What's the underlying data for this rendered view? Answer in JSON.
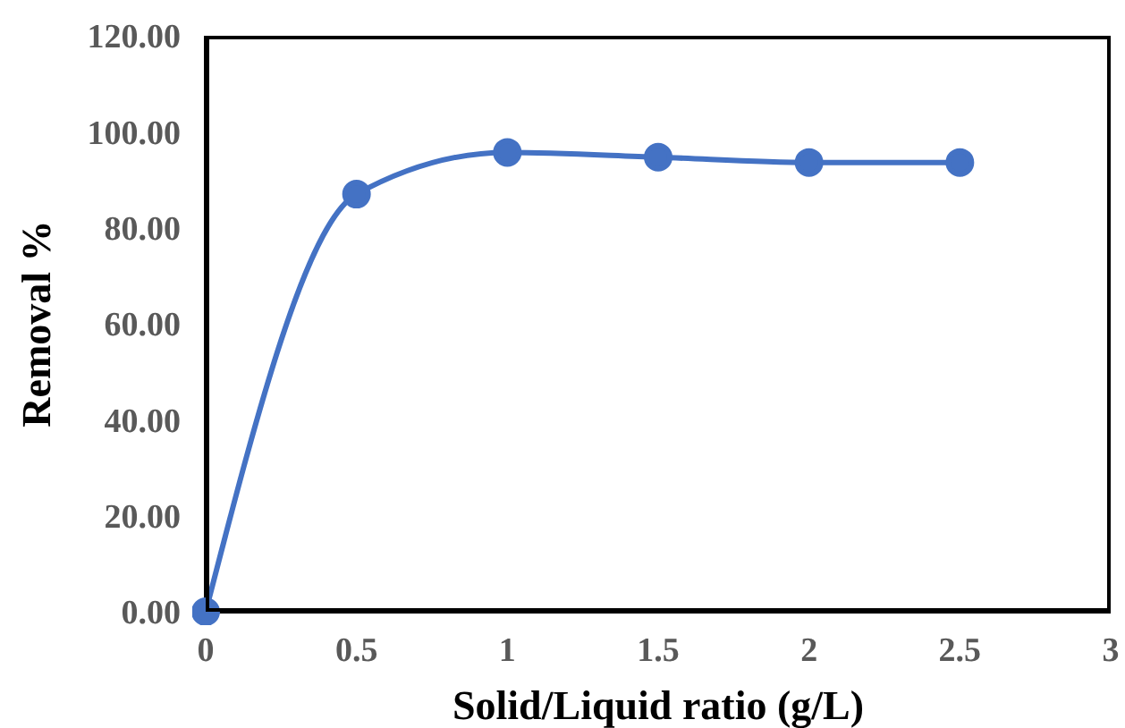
{
  "chart_data": {
    "type": "line",
    "xlabel": "Solid/Liquid ratio (g/L)",
    "ylabel": "Removal %",
    "x": [
      0,
      0.5,
      1,
      1.5,
      2,
      2.5
    ],
    "series": [
      {
        "color": "#4472c4",
        "values": [
          0,
          87.0,
          95.7,
          94.7,
          93.6,
          93.6
        ]
      }
    ],
    "xlim": [
      0,
      3
    ],
    "xticks": [
      0,
      0.5,
      1,
      1.5,
      2,
      2.5,
      3
    ],
    "ylim": [
      0,
      120
    ],
    "yticks": [
      {
        "value": 0,
        "label": "0.00"
      },
      {
        "value": 20,
        "label": "20.00"
      },
      {
        "value": 40,
        "label": "40.00"
      },
      {
        "value": 60,
        "label": "60.00"
      },
      {
        "value": 80,
        "label": "80.00"
      },
      {
        "value": 100,
        "label": "100.00"
      },
      {
        "value": 120,
        "label": "120.00"
      }
    ],
    "grid": false,
    "legend": false,
    "marker": "circle",
    "line_style": "solid"
  }
}
